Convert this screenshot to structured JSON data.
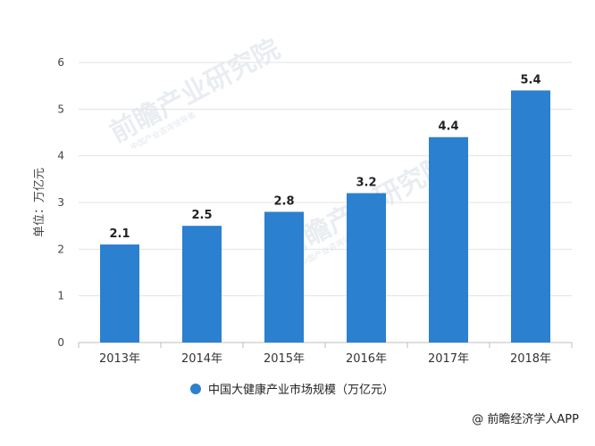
{
  "chart_data": {
    "type": "bar",
    "categories": [
      "2013年",
      "2014年",
      "2015年",
      "2016年",
      "2017年",
      "2018年"
    ],
    "series": [
      {
        "name": "中国大健康产业市场规模（万亿元）",
        "values": [
          2.1,
          2.5,
          2.8,
          3.2,
          4.4,
          5.4
        ]
      }
    ],
    "data_labels": [
      "2.1",
      "2.5",
      "2.8",
      "3.2",
      "4.4",
      "5.4"
    ],
    "ylabel": "单位：万亿元",
    "yticks": [
      "0",
      "1",
      "2",
      "3",
      "4",
      "5",
      "6"
    ],
    "ylim": [
      0,
      6
    ],
    "grid": true,
    "legend_position": "bottom",
    "bar_color": "#2b80cf"
  },
  "watermark": {
    "text": "前瞻产业研究院",
    "subtext": "中国产业咨询领导者"
  },
  "credit": "@ 前瞻经济学人APP"
}
